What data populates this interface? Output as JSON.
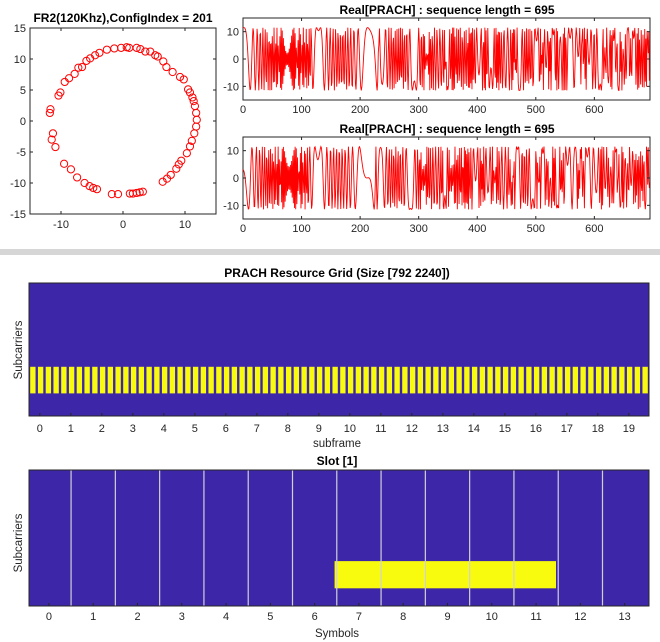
{
  "chart_data": [
    {
      "type": "scatter",
      "title": "FR2(120Khz),ConfigIndex = 201",
      "xlabel": "",
      "ylabel": "",
      "xlim": [
        -15,
        15
      ],
      "ylim": [
        -15,
        15
      ],
      "xticks": [
        "-10",
        "0",
        "10"
      ],
      "yticks": [
        "15",
        "10",
        "5",
        "0",
        "-5",
        "-10",
        "-15"
      ],
      "marker": "circle-open",
      "color": "#ff0000",
      "points": [
        [
          -0.3,
          11.8
        ],
        [
          0.6,
          11.9
        ],
        [
          1.0,
          11.8
        ],
        [
          2.2,
          11.8
        ],
        [
          2.8,
          11.6
        ],
        [
          3.6,
          11.2
        ],
        [
          4.4,
          11.2
        ],
        [
          5.2,
          10.6
        ],
        [
          5.6,
          10.4
        ],
        [
          6.5,
          9.6
        ],
        [
          7.0,
          8.7
        ],
        [
          8.0,
          7.9
        ],
        [
          9.2,
          7.1
        ],
        [
          9.8,
          6.7
        ],
        [
          10.5,
          5.1
        ],
        [
          10.8,
          4.6
        ],
        [
          11.2,
          3.8
        ],
        [
          11.4,
          3.2
        ],
        [
          11.6,
          2.4
        ],
        [
          11.8,
          1.3
        ],
        [
          11.9,
          0.2
        ],
        [
          11.8,
          -0.9
        ],
        [
          11.5,
          -2.0
        ],
        [
          11.1,
          -3.2
        ],
        [
          10.8,
          -4.1
        ],
        [
          10.3,
          -5.2
        ],
        [
          9.4,
          -6.4
        ],
        [
          9.0,
          -7.0
        ],
        [
          8.6,
          -7.7
        ],
        [
          7.7,
          -8.7
        ],
        [
          7.1,
          -9.3
        ],
        [
          6.4,
          -9.8
        ],
        [
          3.2,
          -11.4
        ],
        [
          2.7,
          -11.5
        ],
        [
          2.2,
          -11.6
        ],
        [
          1.6,
          -11.7
        ],
        [
          1.1,
          -11.7
        ],
        [
          -0.8,
          -11.8
        ],
        [
          -1.8,
          -11.8
        ],
        [
          -4.2,
          -11.0
        ],
        [
          -4.8,
          -10.8
        ],
        [
          -5.4,
          -10.5
        ],
        [
          -6.2,
          -10.0
        ],
        [
          -7.4,
          -9.1
        ],
        [
          -8.4,
          -7.8
        ],
        [
          -9.5,
          -6.9
        ],
        [
          -10.9,
          -4.2
        ],
        [
          -11.5,
          -3.0
        ],
        [
          -11.3,
          -2.0
        ],
        [
          -11.8,
          1.3
        ],
        [
          -11.7,
          1.9
        ],
        [
          -10.4,
          4.1
        ],
        [
          -10.1,
          4.6
        ],
        [
          -9.4,
          6.3
        ],
        [
          -8.7,
          6.9
        ],
        [
          -7.8,
          7.6
        ],
        [
          -7.2,
          8.6
        ],
        [
          -6.6,
          8.7
        ],
        [
          -5.9,
          9.7
        ],
        [
          -5.3,
          10.1
        ],
        [
          -4.5,
          10.6
        ],
        [
          -3.8,
          11.0
        ],
        [
          -2.6,
          11.5
        ],
        [
          -1.4,
          11.7
        ]
      ]
    },
    {
      "type": "line",
      "title": "Real[PRACH] : sequence length = 695",
      "xlabel": "",
      "ylabel": "",
      "xlim": [
        0,
        695
      ],
      "ylim": [
        -15,
        15
      ],
      "xticks": [
        0,
        100,
        200,
        300,
        400,
        500,
        600
      ],
      "yticks": [
        10,
        0,
        -10
      ],
      "color": "#ff0000",
      "n_points": 695,
      "envelope_amplitude": 11.5
    },
    {
      "type": "line",
      "title": "Real[PRACH] : sequence length = 695",
      "xlabel": "",
      "ylabel": "",
      "xlim": [
        0,
        695
      ],
      "ylim": [
        -15,
        15
      ],
      "xticks": [
        0,
        100,
        200,
        300,
        400,
        500,
        600
      ],
      "yticks": [
        10,
        0,
        -10
      ],
      "color": "#ff0000",
      "n_points": 695,
      "envelope_amplitude": 11.5
    },
    {
      "type": "heatmap",
      "title": "PRACH Resource Grid (Size [792 2240])",
      "xlabel": "subframe",
      "ylabel": "Subcarriers",
      "xticks": [
        "0",
        "1",
        "2",
        "3",
        "4",
        "5",
        "6",
        "7",
        "8",
        "9",
        "10",
        "11",
        "12",
        "13",
        "14",
        "15",
        "16",
        "17",
        "18",
        "19"
      ],
      "background_color": "#3e26a8",
      "active_color": "#f9fb0e",
      "active_band_rows_fraction": [
        0.63,
        0.83
      ],
      "active_bursts_per_subframe": 4,
      "subframes": 20
    },
    {
      "type": "heatmap",
      "title": "Slot [1]",
      "xlabel": "Symbols",
      "ylabel": "Subcarriers",
      "xticks": [
        "0",
        "1",
        "2",
        "3",
        "4",
        "5",
        "6",
        "7",
        "8",
        "9",
        "10",
        "11",
        "12",
        "13"
      ],
      "background_color": "#3e26a8",
      "active_color": "#f9fb0e",
      "active_symbols": [
        7,
        8,
        9,
        10,
        11
      ],
      "active_band_rows_fraction": [
        0.67,
        0.87
      ]
    }
  ]
}
